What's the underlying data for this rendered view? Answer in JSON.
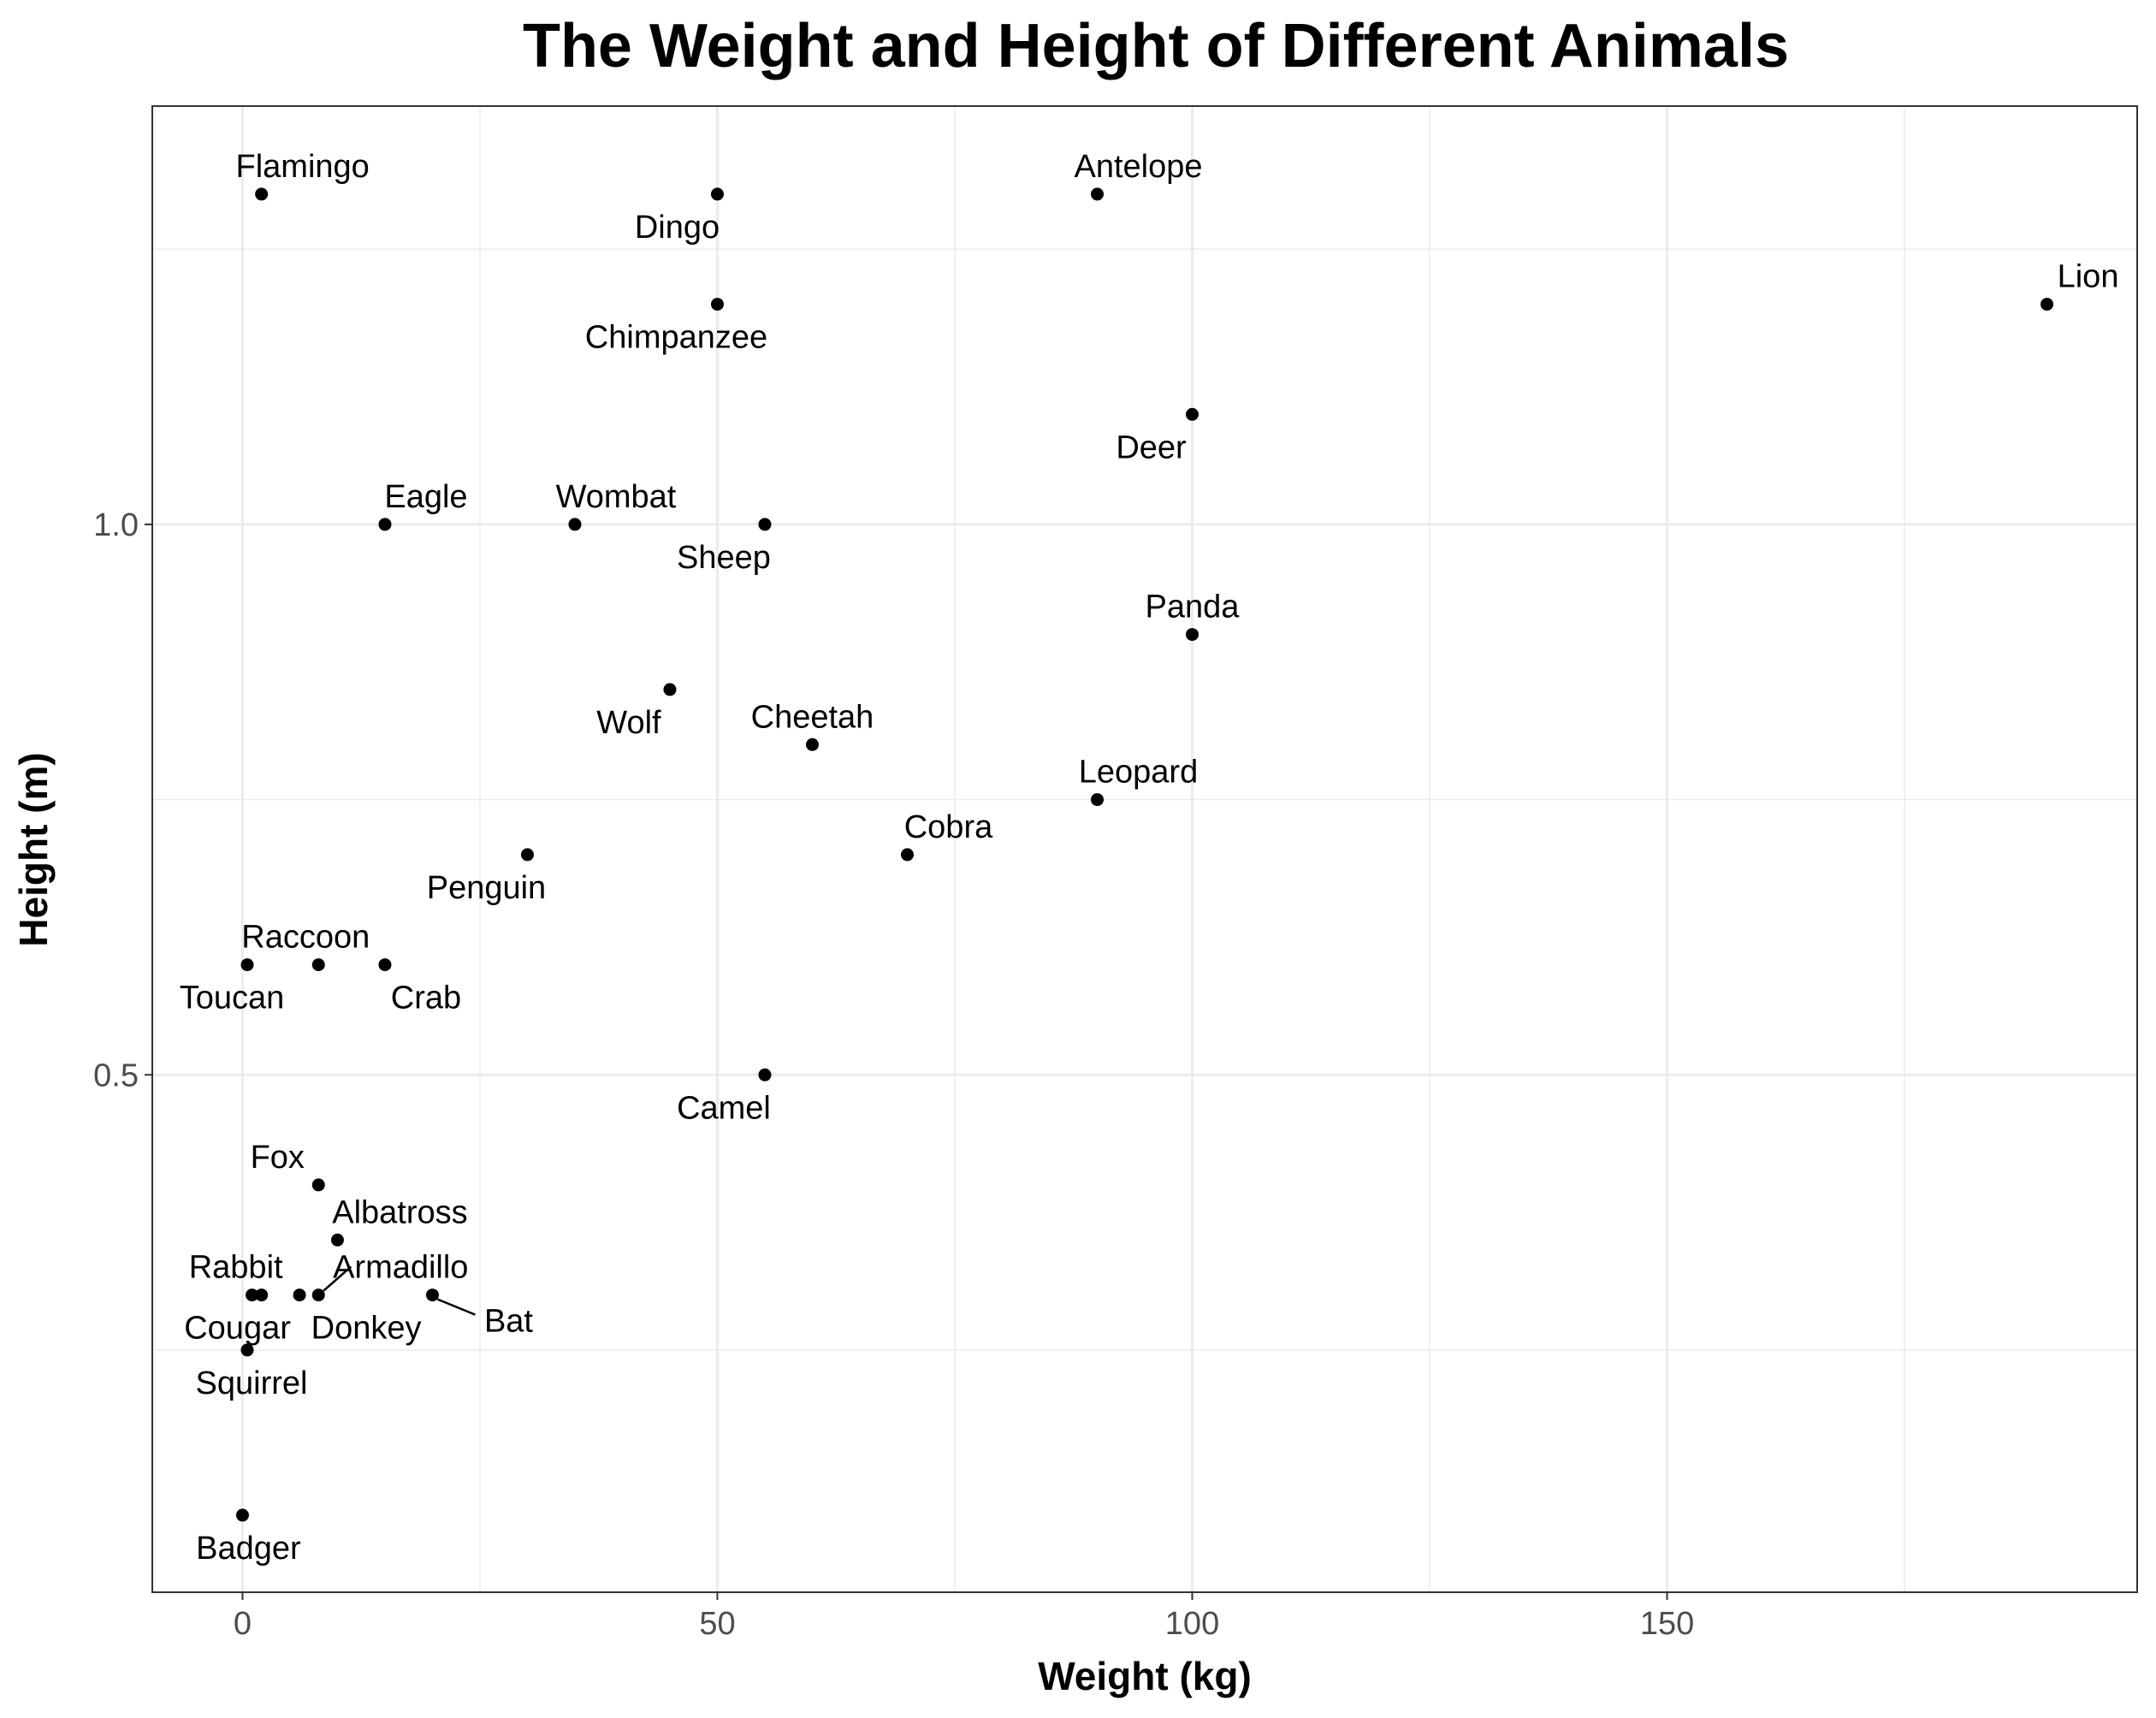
{
  "chart_data": {
    "type": "scatter",
    "title": "The Weight and Height of Different Animals",
    "xlabel": "Weight (kg)",
    "ylabel": "Height (m)",
    "xlim": [
      -9.5,
      199.5
    ],
    "ylim": [
      0.03,
      1.38
    ],
    "x_ticks": [
      0,
      50,
      100,
      150
    ],
    "x_tick_labels": [
      "0",
      "50",
      "100",
      "150"
    ],
    "y_ticks": [
      0.5,
      1.0
    ],
    "y_tick_labels": [
      "0.5",
      "1.0"
    ],
    "grid": true,
    "point_color": "#000000",
    "points": [
      {
        "label": "Flamingo",
        "x": 2,
        "y": 1.3
      },
      {
        "label": "Dingo",
        "x": 50,
        "y": 1.3
      },
      {
        "label": "Antelope",
        "x": 90,
        "y": 1.3
      },
      {
        "label": "Lion",
        "x": 190,
        "y": 1.2
      },
      {
        "label": "Chimpanzee",
        "x": 50,
        "y": 1.2
      },
      {
        "label": "Deer",
        "x": 100,
        "y": 1.1
      },
      {
        "label": "Eagle",
        "x": 15,
        "y": 1.0
      },
      {
        "label": "Wombat",
        "x": 35,
        "y": 1.0
      },
      {
        "label": "Sheep",
        "x": 55,
        "y": 1.0
      },
      {
        "label": "Panda",
        "x": 100,
        "y": 0.9
      },
      {
        "label": "Wolf",
        "x": 45,
        "y": 0.85
      },
      {
        "label": "Cheetah",
        "x": 60,
        "y": 0.8
      },
      {
        "label": "Leopard",
        "x": 90,
        "y": 0.75
      },
      {
        "label": "Cobra",
        "x": 70,
        "y": 0.7
      },
      {
        "label": "Penguin",
        "x": 30,
        "y": 0.7
      },
      {
        "label": "Raccoon",
        "x": 8,
        "y": 0.6
      },
      {
        "label": "Toucan",
        "x": 0.5,
        "y": 0.6
      },
      {
        "label": "Crab",
        "x": 15,
        "y": 0.6
      },
      {
        "label": "Camel",
        "x": 55,
        "y": 0.5
      },
      {
        "label": "Fox",
        "x": 8,
        "y": 0.4
      },
      {
        "label": "Albatross",
        "x": 10,
        "y": 0.35
      },
      {
        "label": "Rabbit",
        "x": 2,
        "y": 0.3
      },
      {
        "label": "Cougar",
        "x": 1,
        "y": 0.3
      },
      {
        "label": "Donkey",
        "x": 6,
        "y": 0.3
      },
      {
        "label": "Armadillo",
        "x": 8,
        "y": 0.3
      },
      {
        "label": "Bat",
        "x": 20,
        "y": 0.3
      },
      {
        "label": "Squirrel",
        "x": 0.5,
        "y": 0.25
      },
      {
        "label": "Badger",
        "x": 0,
        "y": 0.1
      }
    ]
  }
}
